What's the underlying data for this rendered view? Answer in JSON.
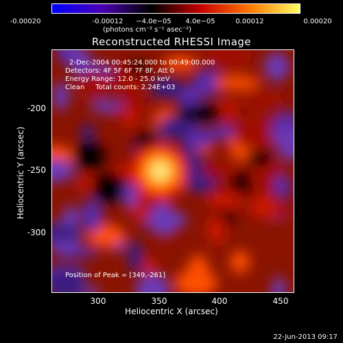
{
  "colorbar": {
    "ticks": [
      "-0.00020",
      "-0.00012",
      "−4.0e−05",
      "4.0e−05",
      "0.00012",
      "0.00020"
    ],
    "label": "(photons cm⁻² s⁻¹ asec⁻²)",
    "colors": [
      "#0000ff",
      "#4b00b4",
      "#000000",
      "#c80000",
      "#ff7800",
      "#ffff64"
    ]
  },
  "chart_data": {
    "type": "heatmap",
    "title": "Reconstructed RHESSI Image",
    "xlabel": "Heliocentric X (arcsec)",
    "ylabel": "Heliocentric Y (arcsec)",
    "xlim": [
      264,
      454
    ],
    "ylim": [
      -356,
      -166
    ],
    "xticks": [
      "300",
      "350",
      "400",
      "450"
    ],
    "yticks": [
      "-200",
      "-250",
      "-300"
    ],
    "vrange": [
      -0.0002,
      0.0002
    ],
    "annotations": [
      "2-Dec-2004 00:45:24.000 to 00:49:00.000",
      "Detectors: 4F 5F 6F 7F 8F, Att 0",
      "Energy Range: 12.0 - 25.0 keV",
      "Clean     Total counts: 2.24E+03"
    ],
    "peak_label": "Position of Peak = [349,-261]",
    "peak": [
      349,
      -261
    ]
  },
  "timestamp": "22-Jun-2013 09:17"
}
